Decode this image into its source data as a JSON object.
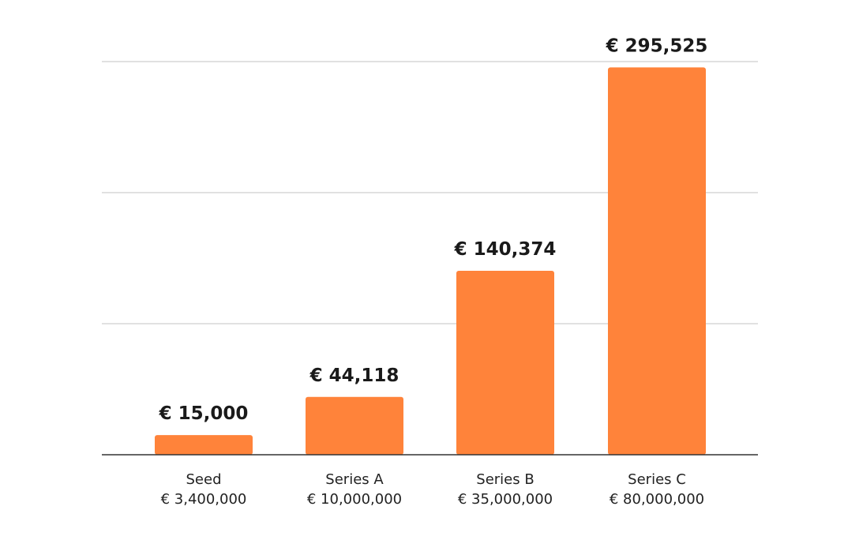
{
  "chart_data": {
    "type": "bar",
    "categories": [
      "Seed",
      "Series A",
      "Series B",
      "Series C"
    ],
    "sublabels": [
      "€ 3,400,000",
      "€ 10,000,000",
      "€ 35,000,000",
      "€ 80,000,000"
    ],
    "values": [
      15000,
      44118,
      140374,
      295525
    ],
    "value_labels": [
      "€ 15,000",
      "€ 44,118",
      "€ 140,374",
      "€ 295,525"
    ],
    "title": "",
    "xlabel": "",
    "ylabel": "",
    "ylim": [
      0,
      300000
    ],
    "grid": true,
    "legend": "none",
    "bar_color": "#FF833A"
  }
}
